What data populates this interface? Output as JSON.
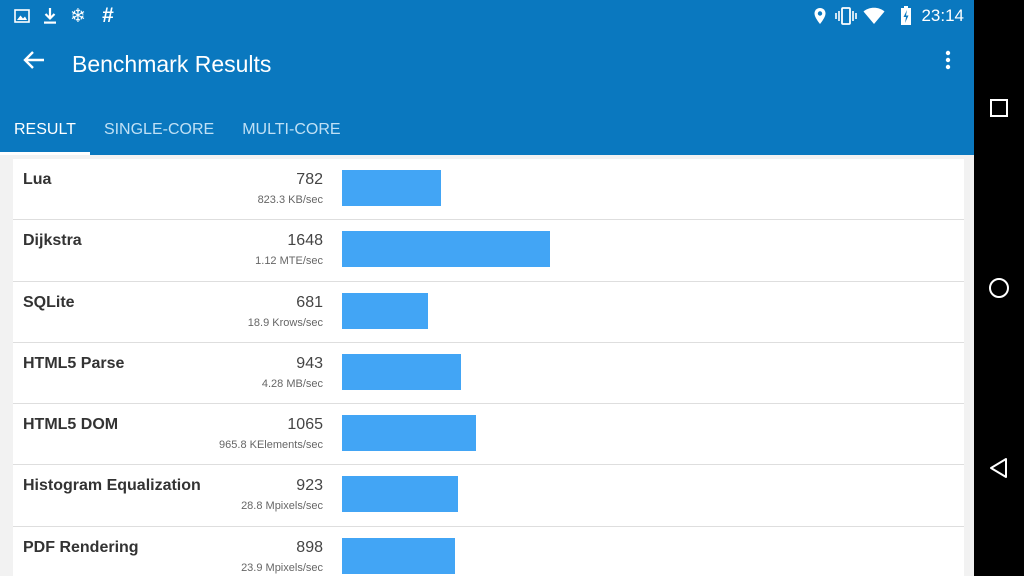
{
  "status_bar": {
    "time": "23:14",
    "left_icons": [
      "image-icon",
      "download-icon",
      "snowflake-icon",
      "hash-icon"
    ],
    "right_icons": [
      "location-icon",
      "vibrate-icon",
      "wifi-icon",
      "battery-charging-icon"
    ]
  },
  "toolbar": {
    "title": "Benchmark Results",
    "back_icon": "arrow-back-icon",
    "menu_icon": "more-vert-icon"
  },
  "tabs": [
    {
      "label": "RESULT",
      "active": true
    },
    {
      "label": "SINGLE-CORE",
      "active": false
    },
    {
      "label": "MULTI-CORE",
      "active": false
    }
  ],
  "results": [
    {
      "name": "Lua",
      "score": "782",
      "rate": "823.3 KB/sec",
      "bar_fraction": 0.474
    },
    {
      "name": "Dijkstra",
      "score": "1648",
      "rate": "1.12 MTE/sec",
      "bar_fraction": 1.0
    },
    {
      "name": "SQLite",
      "score": "681",
      "rate": "18.9 Krows/sec",
      "bar_fraction": 0.413
    },
    {
      "name": "HTML5 Parse",
      "score": "943",
      "rate": "4.28 MB/sec",
      "bar_fraction": 0.572
    },
    {
      "name": "HTML5 DOM",
      "score": "1065",
      "rate": "965.8 KElements/sec",
      "bar_fraction": 0.646
    },
    {
      "name": "Histogram Equalization",
      "score": "923",
      "rate": "28.8 Mpixels/sec",
      "bar_fraction": 0.56
    },
    {
      "name": "PDF Rendering",
      "score": "898",
      "rate": "23.9 Mpixels/sec",
      "bar_fraction": 0.545
    }
  ],
  "nav_bar": {
    "buttons": [
      "recents-icon",
      "home-icon",
      "back-triangle-icon"
    ]
  },
  "colors": {
    "app_bar": "#0a78bf",
    "bar": "#42a5f5",
    "tab_inactive": "#bfe0f5"
  }
}
